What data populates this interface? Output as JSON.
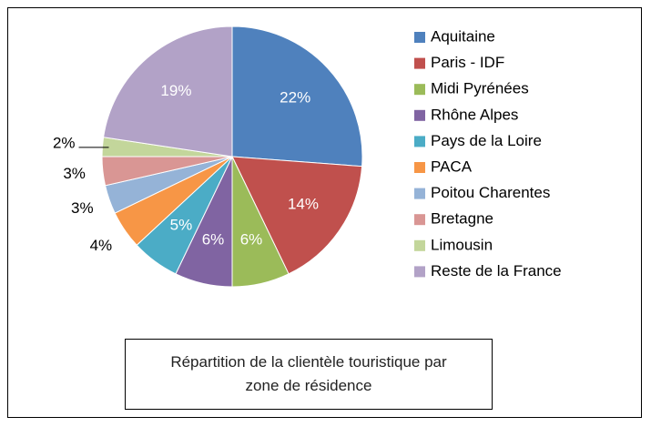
{
  "chart_data": {
    "type": "pie",
    "title": "Répartition de la clientèle touristique par zone de résidence",
    "categories": [
      "Aquitaine",
      "Paris - IDF",
      "Midi Pyrénées",
      "Rhône Alpes",
      "Pays de la Loire",
      "PACA",
      "Poitou Charentes",
      "Bretagne",
      "Limousin",
      "Reste de la France"
    ],
    "values": [
      22,
      14,
      6,
      6,
      5,
      4,
      3,
      3,
      2,
      19
    ],
    "value_labels": [
      "22%",
      "14%",
      "6%",
      "6%",
      "5%",
      "4%",
      "3%",
      "3%",
      "2%",
      "19%"
    ],
    "colors": [
      "#4F81BD",
      "#C0504D",
      "#9BBB59",
      "#8064A2",
      "#4BACC6",
      "#F79646",
      "#95B3D7",
      "#D99694",
      "#C3D69B",
      "#B2A2C7"
    ],
    "legend": "right"
  }
}
